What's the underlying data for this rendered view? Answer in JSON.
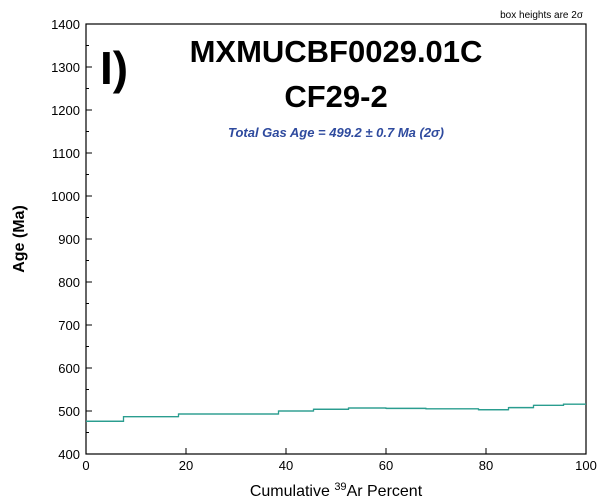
{
  "chart_data": {
    "type": "line",
    "panel_label": "I)",
    "title": "MXMUCBF0029.01C",
    "subtitle": "CF29-2",
    "annotation": "Total Gas Age = 499.2 ± 0.7 Ma (2σ)",
    "note": "box heights are 2σ",
    "xlabel_parts": [
      "Cumulative ",
      "39",
      "Ar Percent"
    ],
    "ylabel": "Age (Ma)",
    "xlim": [
      0,
      100
    ],
    "ylim": [
      400,
      1400
    ],
    "xticks": [
      0,
      20,
      40,
      60,
      80,
      100
    ],
    "yticks": [
      400,
      500,
      600,
      700,
      800,
      900,
      1000,
      1100,
      1200,
      1300,
      1400
    ],
    "series": [
      {
        "steps": [
          {
            "x0": 0,
            "x1": 7.5,
            "age": 476
          },
          {
            "x0": 7.5,
            "x1": 18.5,
            "age": 487
          },
          {
            "x0": 18.5,
            "x1": 38.5,
            "age": 493
          },
          {
            "x0": 38.5,
            "x1": 45.5,
            "age": 500
          },
          {
            "x0": 45.5,
            "x1": 52.5,
            "age": 504
          },
          {
            "x0": 52.5,
            "x1": 60,
            "age": 507
          },
          {
            "x0": 60,
            "x1": 68,
            "age": 506
          },
          {
            "x0": 68,
            "x1": 78.5,
            "age": 505
          },
          {
            "x0": 78.5,
            "x1": 84.5,
            "age": 503
          },
          {
            "x0": 84.5,
            "x1": 89.5,
            "age": 508
          },
          {
            "x0": 89.5,
            "x1": 95.5,
            "age": 513
          },
          {
            "x0": 95.5,
            "x1": 100,
            "age": 516
          }
        ]
      }
    ],
    "colors": {
      "series": "#2a9d8f",
      "annotation": "#2e4a9e",
      "axis": "#000000"
    }
  }
}
